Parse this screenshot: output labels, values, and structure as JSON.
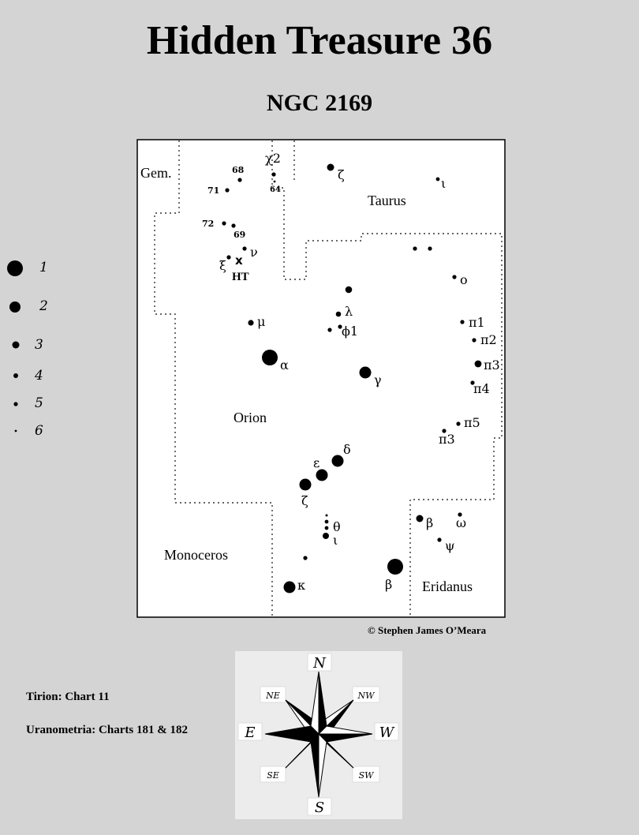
{
  "title": "Hidden Treasure 36",
  "subtitle": "NGC 2169",
  "credit": "© Stephen James O’Meara",
  "references": {
    "tirion": "Tirion: Chart 11",
    "uranometria": "Uranometria: Charts 181 & 182"
  },
  "legend": {
    "magnitudes": [
      "1",
      "2",
      "3",
      "4",
      "5",
      "6"
    ]
  },
  "constellations": {
    "gem": "Gem.",
    "taurus": "Taurus",
    "orion": "Orion",
    "monoceros": "Monoceros",
    "eridanus": "Eridanus"
  },
  "target": {
    "marker": "x",
    "label": "HT"
  },
  "stars": {
    "chi2": "χ2",
    "n64": "64",
    "n68": "68",
    "n71": "71",
    "n72": "72",
    "n69": "69",
    "nu": "ν",
    "xi": "ξ",
    "zeta_tau": "ζ",
    "iota_tau": "ι",
    "o": "o",
    "mu": "μ",
    "lambda": "λ",
    "phi1": "ϕ1",
    "alpha": "α",
    "gamma": "γ",
    "pi1": "π1",
    "pi2": "π2",
    "pi3": "π3",
    "pi4": "π4",
    "pi5": "π5",
    "pi3b": "π3",
    "delta": "δ",
    "epsilon": "ε",
    "zeta_ori": "ζ",
    "theta": "θ",
    "iota_ori": "ι",
    "kappa": "κ",
    "beta_ori": "β",
    "beta_eri": "β",
    "omega": "ω",
    "psi": "ψ"
  },
  "compass": {
    "n": "N",
    "s": "S",
    "e": "E",
    "w": "W",
    "ne": "NE",
    "nw": "NW",
    "se": "SE",
    "sw": "SW"
  }
}
